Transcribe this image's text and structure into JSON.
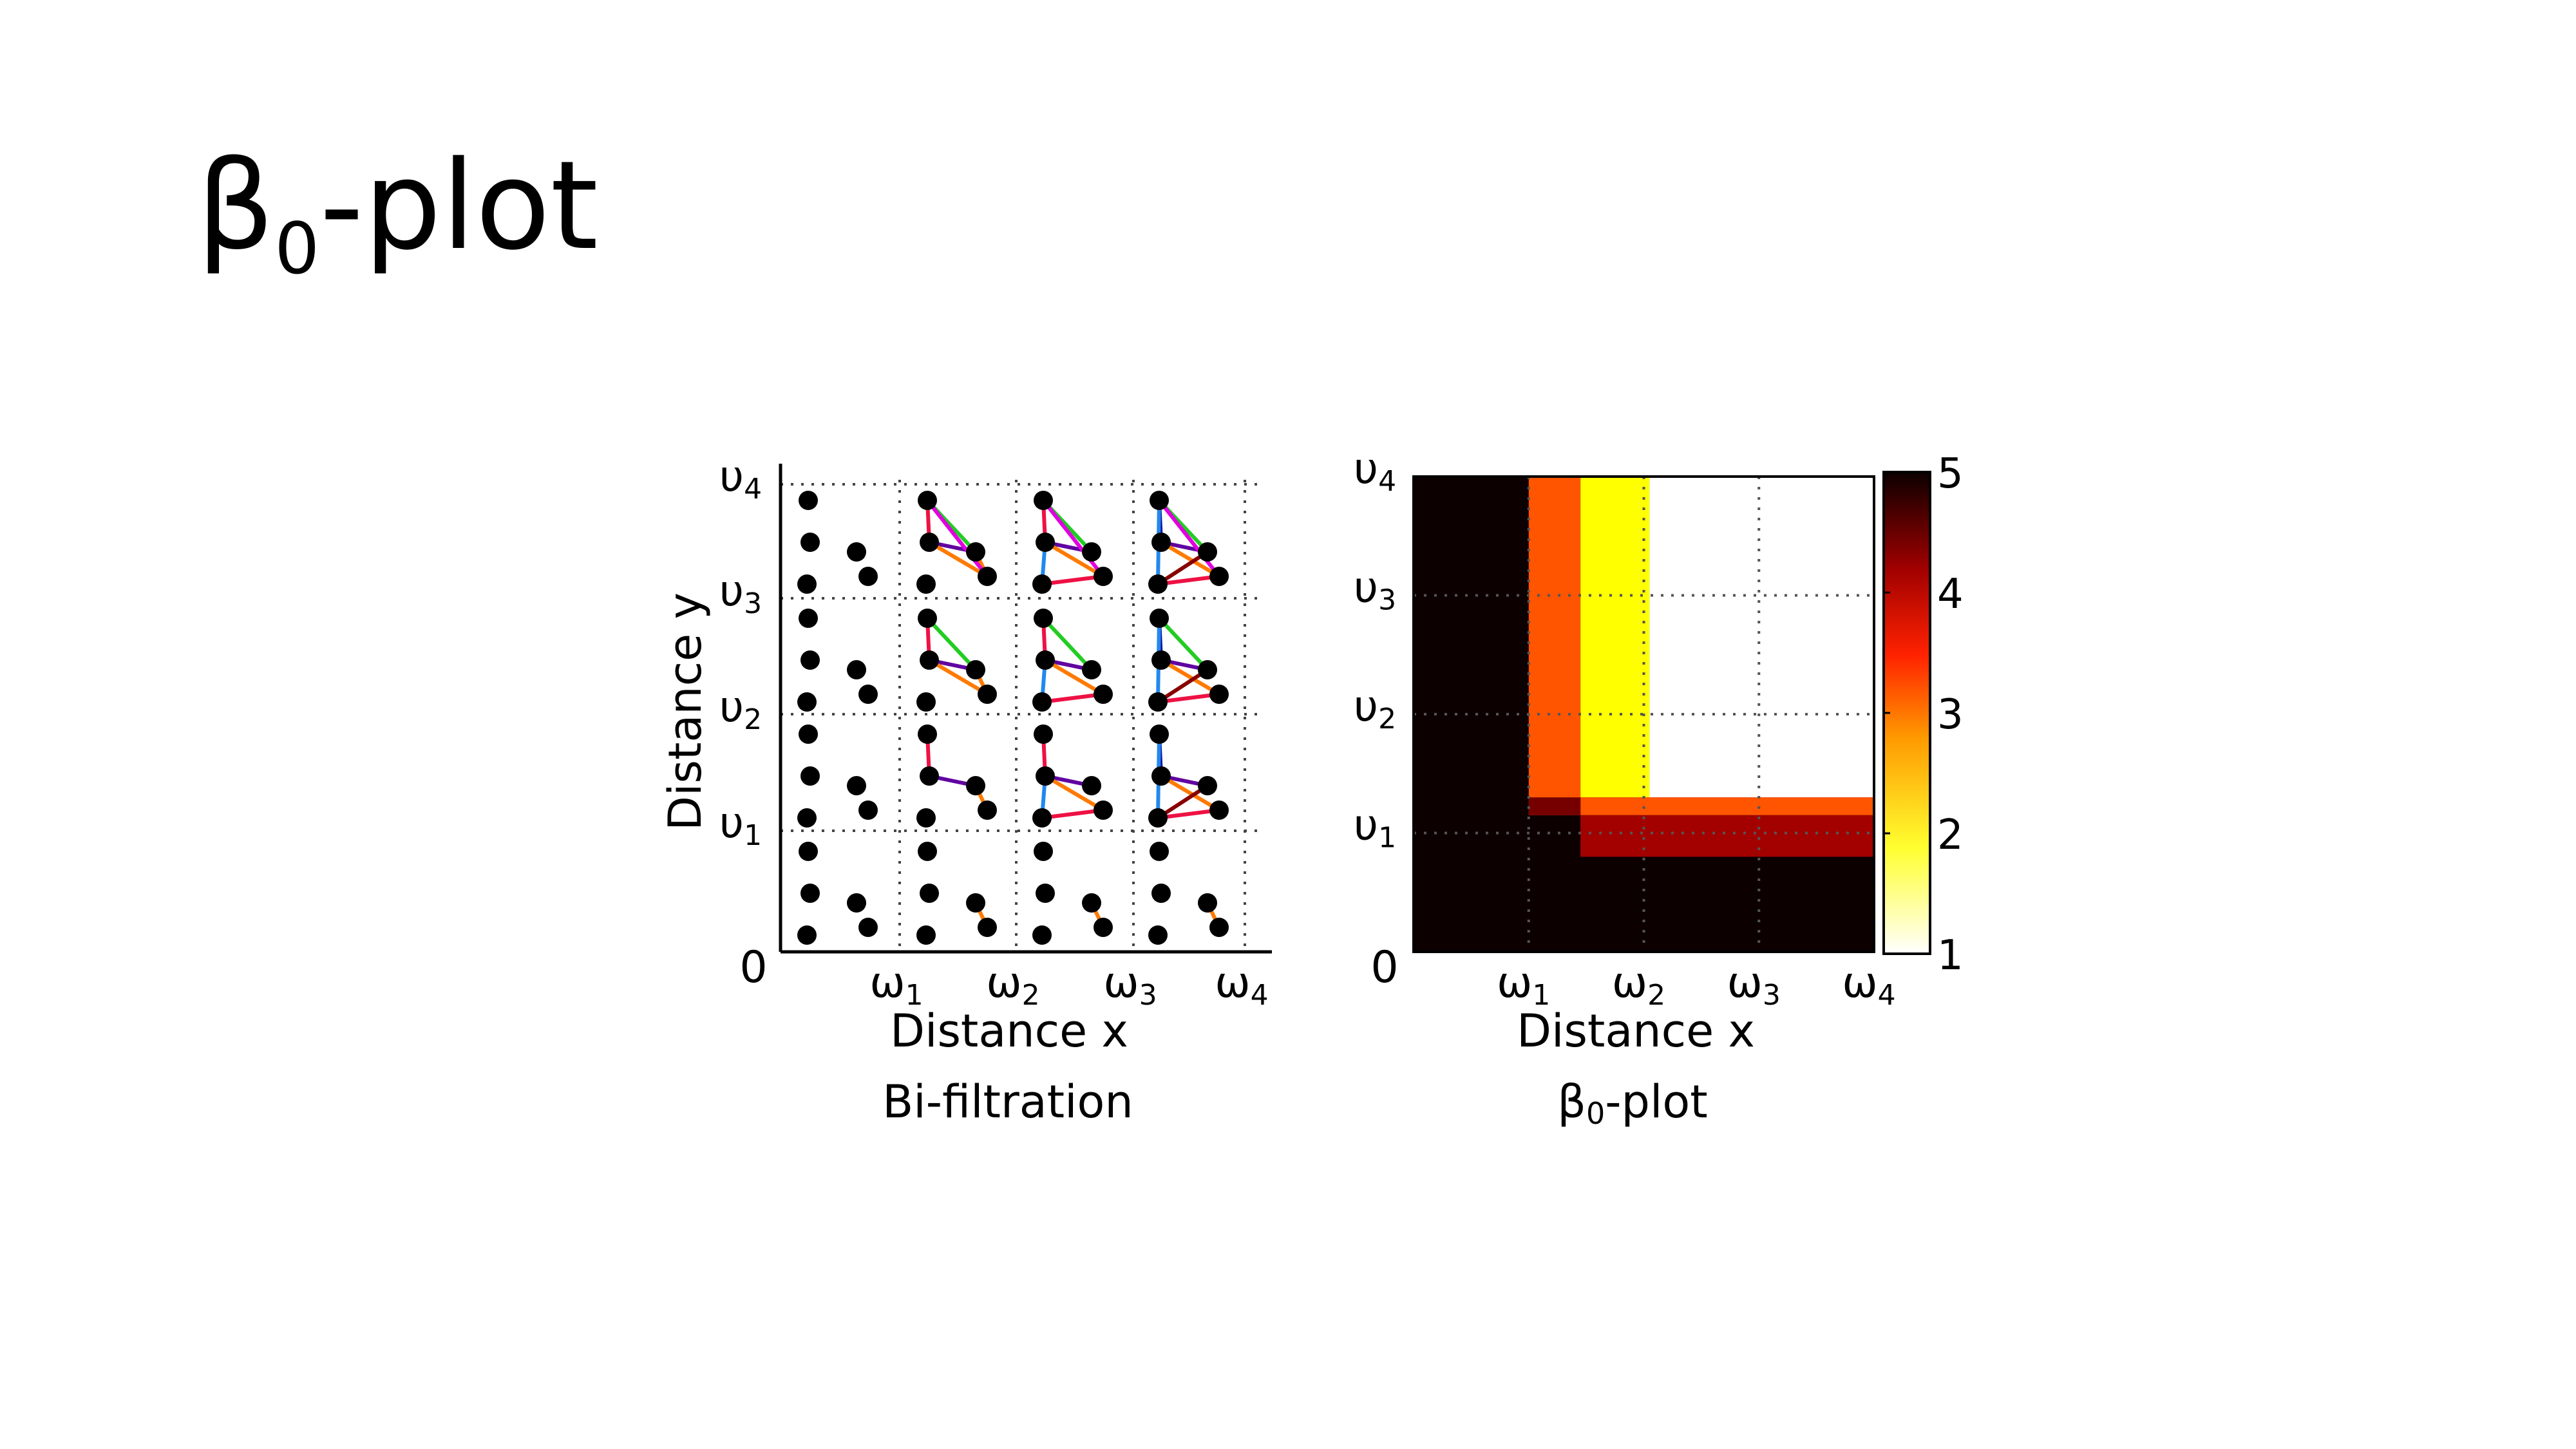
{
  "slide_title": {
    "main": "β",
    "sub": "0",
    "rest": "-plot"
  },
  "bifiltration": {
    "caption": "Bi-filtration",
    "xlabel": "Distance x",
    "ylabel": "Distance y",
    "origin_label": "0",
    "x_ticks": [
      {
        "base": "ω",
        "sub": "1"
      },
      {
        "base": "ω",
        "sub": "2"
      },
      {
        "base": "ω",
        "sub": "3"
      },
      {
        "base": "ω",
        "sub": "4"
      }
    ],
    "y_ticks": [
      {
        "base": "υ",
        "sub": "1"
      },
      {
        "base": "υ",
        "sub": "2"
      },
      {
        "base": "υ",
        "sub": "3"
      },
      {
        "base": "υ",
        "sub": "4"
      }
    ]
  },
  "chart_data": {
    "type": "heatmap",
    "title": {
      "base": "β",
      "sub": "0",
      "rest": "-plot"
    },
    "xlabel": "Distance x",
    "ylabel": "",
    "origin_label": "0",
    "x_ticks": [
      {
        "base": "ω",
        "sub": "1"
      },
      {
        "base": "ω",
        "sub": "2"
      },
      {
        "base": "ω",
        "sub": "3"
      },
      {
        "base": "ω",
        "sub": "4"
      }
    ],
    "y_ticks": [
      {
        "base": "υ",
        "sub": "1"
      },
      {
        "base": "υ",
        "sub": "2"
      },
      {
        "base": "υ",
        "sub": "3"
      },
      {
        "base": "υ",
        "sub": "4"
      }
    ],
    "colorbar": {
      "min": 1,
      "max": 5,
      "ticks": [
        "1",
        "2",
        "3",
        "4",
        "5"
      ],
      "colormap": "hot (reversed)"
    },
    "regions": [
      {
        "x": [
          0,
          4
        ],
        "y": [
          0,
          4
        ],
        "value": 5
      },
      {
        "x": [
          1,
          1.45
        ],
        "y": [
          1.15,
          4
        ],
        "value": 3
      },
      {
        "x": [
          1.45,
          2.05
        ],
        "y": [
          1.3,
          4
        ],
        "value": 2
      },
      {
        "x": [
          2.05,
          4
        ],
        "y": [
          1.3,
          4
        ],
        "value": 1
      },
      {
        "x": [
          1.45,
          4
        ],
        "y": [
          1.15,
          1.3
        ],
        "value": 3
      },
      {
        "x": [
          1,
          1.45
        ],
        "y": [
          1.15,
          1.3
        ],
        "value": 4
      },
      {
        "x": [
          1.45,
          4
        ],
        "y": [
          0.8,
          1.15
        ],
        "value": 4
      }
    ],
    "grid": true
  },
  "colors": {
    "black": "#0c0000",
    "orange": "#ff5500",
    "yellow": "#ffff00",
    "dark_red": "#a30000",
    "red_row": "#760000",
    "edge_magenta": "#e000e0",
    "edge_green": "#22cc22",
    "edge_orange": "#ff7a00",
    "edge_red": "#ee1144",
    "edge_purple": "#6000a0",
    "edge_blue": "#2288ee",
    "edge_darkblue": "#1010a0",
    "edge_darkred": "#880000"
  }
}
